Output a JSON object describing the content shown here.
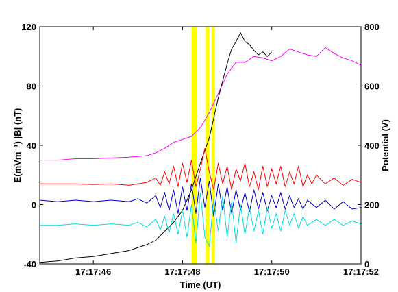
{
  "chart_data": {
    "type": "line",
    "xlabel": "Time (UT)",
    "ylabel_left": "E(mVm⁻¹)  |B| (nT)",
    "ylabel_right": "Potential (V)",
    "x_range_seconds": [
      44.8,
      52
    ],
    "x_ticks": [
      {
        "t": 46,
        "label": "17:17:46"
      },
      {
        "t": 48,
        "label": "17:17:48"
      },
      {
        "t": 50,
        "label": "17:17:50"
      },
      {
        "t": 52,
        "label": "17:17:52"
      }
    ],
    "ylim_left": [
      -40,
      120
    ],
    "yticks_left": [
      {
        "v": -40,
        "label": "-40"
      },
      {
        "v": 0,
        "label": "0"
      },
      {
        "v": 40,
        "label": "40"
      },
      {
        "v": 80,
        "label": "80"
      },
      {
        "v": 120,
        "label": "120"
      }
    ],
    "ylim_right": [
      0,
      800
    ],
    "yticks_right": [
      {
        "v": 0,
        "label": "0"
      },
      {
        "v": 200,
        "label": "200"
      },
      {
        "v": 400,
        "label": "400"
      },
      {
        "v": 600,
        "label": "600"
      },
      {
        "v": 800,
        "label": "800"
      }
    ],
    "highlight_bands": [
      {
        "t0": 48.2,
        "t1": 48.33,
        "color": "#ffff00"
      },
      {
        "t0": 48.52,
        "t1": 48.6,
        "color": "#ffff00"
      },
      {
        "t0": 48.65,
        "t1": 48.73,
        "color": "#ffff00"
      }
    ],
    "series": [
      {
        "color": "#ff00ff",
        "axis": "left",
        "points": [
          [
            44.8,
            30
          ],
          [
            45.2,
            30
          ],
          [
            45.6,
            31
          ],
          [
            46,
            31
          ],
          [
            46.4,
            31.5
          ],
          [
            46.8,
            32
          ],
          [
            47.2,
            33
          ],
          [
            47.4,
            35
          ],
          [
            47.6,
            38
          ],
          [
            47.8,
            42
          ],
          [
            48,
            44
          ],
          [
            48.2,
            46
          ],
          [
            48.4,
            52
          ],
          [
            48.6,
            62
          ],
          [
            48.8,
            75
          ],
          [
            49,
            88
          ],
          [
            49.2,
            96
          ],
          [
            49.4,
            96
          ],
          [
            49.6,
            100
          ],
          [
            49.8,
            99
          ],
          [
            50,
            97
          ],
          [
            50.2,
            100
          ],
          [
            50.4,
            105
          ],
          [
            50.6,
            103
          ],
          [
            50.8,
            101
          ],
          [
            51,
            100
          ],
          [
            51.2,
            106
          ],
          [
            51.4,
            102
          ],
          [
            51.6,
            99
          ],
          [
            51.8,
            97
          ],
          [
            52,
            94
          ]
        ]
      },
      {
        "color": "#000000",
        "axis": "left",
        "points": [
          [
            44.8,
            -39
          ],
          [
            45.2,
            -38
          ],
          [
            45.6,
            -36
          ],
          [
            46,
            -35
          ],
          [
            46.4,
            -33
          ],
          [
            46.8,
            -31
          ],
          [
            47.2,
            -27
          ],
          [
            47.4,
            -24
          ],
          [
            47.6,
            -18
          ],
          [
            47.8,
            -12
          ],
          [
            48,
            -4
          ],
          [
            48.2,
            10
          ],
          [
            48.4,
            28
          ],
          [
            48.6,
            45
          ],
          [
            48.8,
            72
          ],
          [
            49,
            95
          ],
          [
            49.1,
            105
          ],
          [
            49.2,
            110
          ],
          [
            49.3,
            116
          ],
          [
            49.4,
            110
          ],
          [
            49.5,
            108
          ],
          [
            49.6,
            104
          ],
          [
            49.7,
            101
          ],
          [
            49.8,
            103
          ],
          [
            49.9,
            100
          ],
          [
            50,
            103
          ]
        ]
      },
      {
        "color": "#ff0000",
        "axis": "left",
        "points": [
          [
            44.8,
            14
          ],
          [
            45.2,
            14
          ],
          [
            45.6,
            14
          ],
          [
            46,
            13.5
          ],
          [
            46.4,
            14
          ],
          [
            46.8,
            13
          ],
          [
            47,
            14
          ],
          [
            47.2,
            15
          ],
          [
            47.4,
            18
          ],
          [
            47.5,
            13
          ],
          [
            47.6,
            22
          ],
          [
            47.7,
            14
          ],
          [
            47.8,
            26
          ],
          [
            47.9,
            12
          ],
          [
            48,
            28
          ],
          [
            48.1,
            15
          ],
          [
            48.2,
            30
          ],
          [
            48.3,
            12
          ],
          [
            48.4,
            24
          ],
          [
            48.5,
            38
          ],
          [
            48.6,
            22
          ],
          [
            48.7,
            10
          ],
          [
            48.8,
            28
          ],
          [
            48.9,
            14
          ],
          [
            49,
            26
          ],
          [
            49.1,
            10
          ],
          [
            49.2,
            24
          ],
          [
            49.3,
            16
          ],
          [
            49.4,
            28
          ],
          [
            49.5,
            12
          ],
          [
            49.6,
            22
          ],
          [
            49.7,
            10
          ],
          [
            49.8,
            26
          ],
          [
            49.9,
            12
          ],
          [
            50,
            24
          ],
          [
            50.1,
            14
          ],
          [
            50.2,
            26
          ],
          [
            50.3,
            12
          ],
          [
            50.4,
            22
          ],
          [
            50.5,
            14
          ],
          [
            50.6,
            26
          ],
          [
            50.7,
            12
          ],
          [
            50.8,
            20
          ],
          [
            50.9,
            14
          ],
          [
            51,
            20
          ],
          [
            51.2,
            14
          ],
          [
            51.4,
            18
          ],
          [
            51.6,
            13
          ],
          [
            51.8,
            17
          ],
          [
            52,
            15
          ]
        ]
      },
      {
        "color": "#0000cd",
        "axis": "left",
        "points": [
          [
            44.8,
            3
          ],
          [
            45.2,
            2
          ],
          [
            45.6,
            3
          ],
          [
            46,
            2
          ],
          [
            46.4,
            3
          ],
          [
            46.8,
            2
          ],
          [
            47,
            4
          ],
          [
            47.2,
            1
          ],
          [
            47.4,
            6
          ],
          [
            47.5,
            -2
          ],
          [
            47.6,
            8
          ],
          [
            47.7,
            -4
          ],
          [
            47.8,
            10
          ],
          [
            47.9,
            -6
          ],
          [
            48,
            12
          ],
          [
            48.1,
            -4
          ],
          [
            48.2,
            14
          ],
          [
            48.3,
            -6
          ],
          [
            48.4,
            18
          ],
          [
            48.5,
            -2
          ],
          [
            48.6,
            16
          ],
          [
            48.7,
            -8
          ],
          [
            48.8,
            14
          ],
          [
            48.9,
            -4
          ],
          [
            49,
            12
          ],
          [
            49.1,
            -6
          ],
          [
            49.2,
            10
          ],
          [
            49.3,
            -4
          ],
          [
            49.4,
            8
          ],
          [
            49.5,
            -5
          ],
          [
            49.6,
            10
          ],
          [
            49.7,
            -3
          ],
          [
            49.8,
            8
          ],
          [
            49.9,
            -4
          ],
          [
            50,
            6
          ],
          [
            50.1,
            -2
          ],
          [
            50.2,
            8
          ],
          [
            50.3,
            -3
          ],
          [
            50.4,
            6
          ],
          [
            50.5,
            -2
          ],
          [
            50.6,
            4
          ],
          [
            50.7,
            -3
          ],
          [
            50.8,
            3
          ],
          [
            51,
            -2
          ],
          [
            51.2,
            3
          ],
          [
            51.4,
            -3
          ],
          [
            51.6,
            2
          ],
          [
            51.8,
            -3
          ],
          [
            52,
            -2
          ]
        ]
      },
      {
        "color": "#00e0e0",
        "axis": "left",
        "points": [
          [
            44.8,
            -14
          ],
          [
            45.2,
            -14
          ],
          [
            45.6,
            -13
          ],
          [
            46,
            -14
          ],
          [
            46.4,
            -13
          ],
          [
            46.8,
            -14
          ],
          [
            47,
            -12
          ],
          [
            47.2,
            -15
          ],
          [
            47.4,
            -10
          ],
          [
            47.5,
            -17
          ],
          [
            47.6,
            -8
          ],
          [
            47.7,
            -19
          ],
          [
            47.8,
            -6
          ],
          [
            47.9,
            -20
          ],
          [
            48,
            -4
          ],
          [
            48.1,
            -22
          ],
          [
            48.2,
            0
          ],
          [
            48.3,
            -26
          ],
          [
            48.4,
            8
          ],
          [
            48.5,
            -22
          ],
          [
            48.6,
            -28
          ],
          [
            48.7,
            4
          ],
          [
            48.8,
            -18
          ],
          [
            48.9,
            6
          ],
          [
            49,
            -22
          ],
          [
            49.1,
            2
          ],
          [
            49.2,
            -26
          ],
          [
            49.3,
            0
          ],
          [
            49.4,
            -20
          ],
          [
            49.5,
            -2
          ],
          [
            49.6,
            -18
          ],
          [
            49.7,
            -4
          ],
          [
            49.8,
            -20
          ],
          [
            49.9,
            -2
          ],
          [
            50,
            -16
          ],
          [
            50.1,
            -6
          ],
          [
            50.2,
            -18
          ],
          [
            50.3,
            -4
          ],
          [
            50.4,
            -14
          ],
          [
            50.5,
            -6
          ],
          [
            50.6,
            -16
          ],
          [
            50.7,
            -8
          ],
          [
            50.8,
            -14
          ],
          [
            51,
            -10
          ],
          [
            51.2,
            -14
          ],
          [
            51.4,
            -10
          ],
          [
            51.6,
            -14
          ],
          [
            51.8,
            -11
          ],
          [
            52,
            -13
          ]
        ]
      }
    ]
  }
}
